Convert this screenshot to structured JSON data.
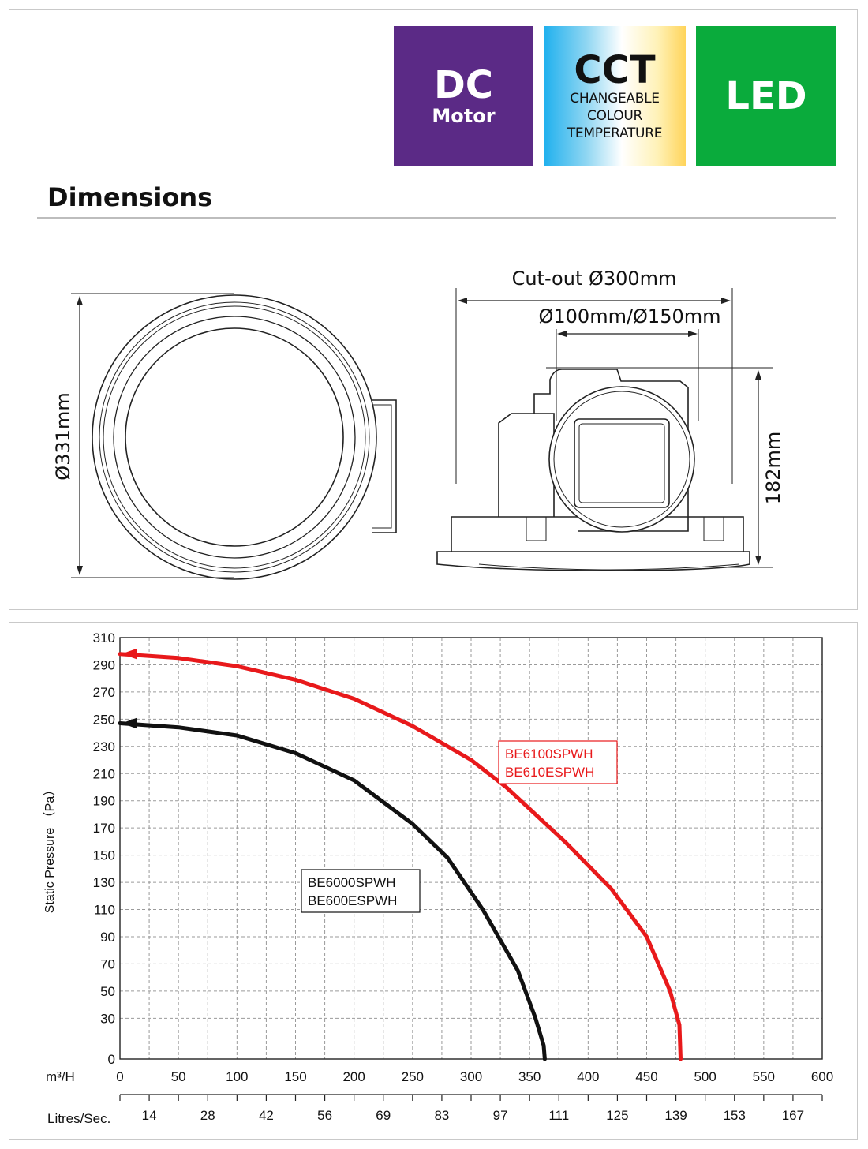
{
  "badges": {
    "dc": {
      "title": "DC",
      "subtitle": "Motor"
    },
    "cct": {
      "title": "CCT",
      "line1": "CHANGEABLE",
      "line2": "COLOUR",
      "line3": "TEMPERATURE"
    },
    "led": {
      "title": "LED"
    }
  },
  "dimensions": {
    "heading": "Dimensions",
    "diameter_label": "Ø331mm",
    "cutout_label": "Cut-out Ø300mm",
    "spigot_label": "Ø100mm/Ø150mm",
    "height_label": "182mm"
  },
  "chart_data": {
    "type": "line",
    "title": "",
    "ylabel": "Static Pressure （Pa）",
    "ylim": [
      0,
      310
    ],
    "yticks": [
      0,
      30,
      50,
      70,
      90,
      110,
      130,
      150,
      170,
      190,
      210,
      230,
      250,
      270,
      290,
      310
    ],
    "xlim": [
      0,
      600
    ],
    "x_axis_label": "m³/H",
    "xticks": [
      0,
      50,
      100,
      150,
      200,
      250,
      300,
      350,
      400,
      450,
      500,
      550,
      600
    ],
    "x2_axis_label": "Litres/Sec.",
    "x2ticks": [
      "14",
      "28",
      "42",
      "56",
      "69",
      "83",
      "97",
      "111",
      "125",
      "139",
      "153",
      "167"
    ],
    "grid": true,
    "series": [
      {
        "name": "BE6100SPWH\nBE610ESPWH",
        "label_lines": [
          "BE6100SPWH",
          "BE610ESPWH"
        ],
        "color": "#e8191b",
        "x": [
          0,
          50,
          100,
          150,
          200,
          250,
          300,
          330,
          380,
          420,
          450,
          470,
          478,
          479
        ],
        "y": [
          298,
          295,
          289,
          279,
          265,
          245,
          220,
          200,
          160,
          125,
          90,
          50,
          25,
          0
        ]
      },
      {
        "name": "BE6000SPWH\nBE600ESPWH",
        "label_lines": [
          "BE6000SPWH",
          "BE600ESPWH"
        ],
        "color": "#111111",
        "x": [
          0,
          50,
          100,
          150,
          200,
          250,
          280,
          310,
          340,
          355,
          362,
          363
        ],
        "y": [
          247,
          244,
          238,
          225,
          205,
          173,
          148,
          110,
          65,
          30,
          10,
          0
        ]
      }
    ]
  }
}
